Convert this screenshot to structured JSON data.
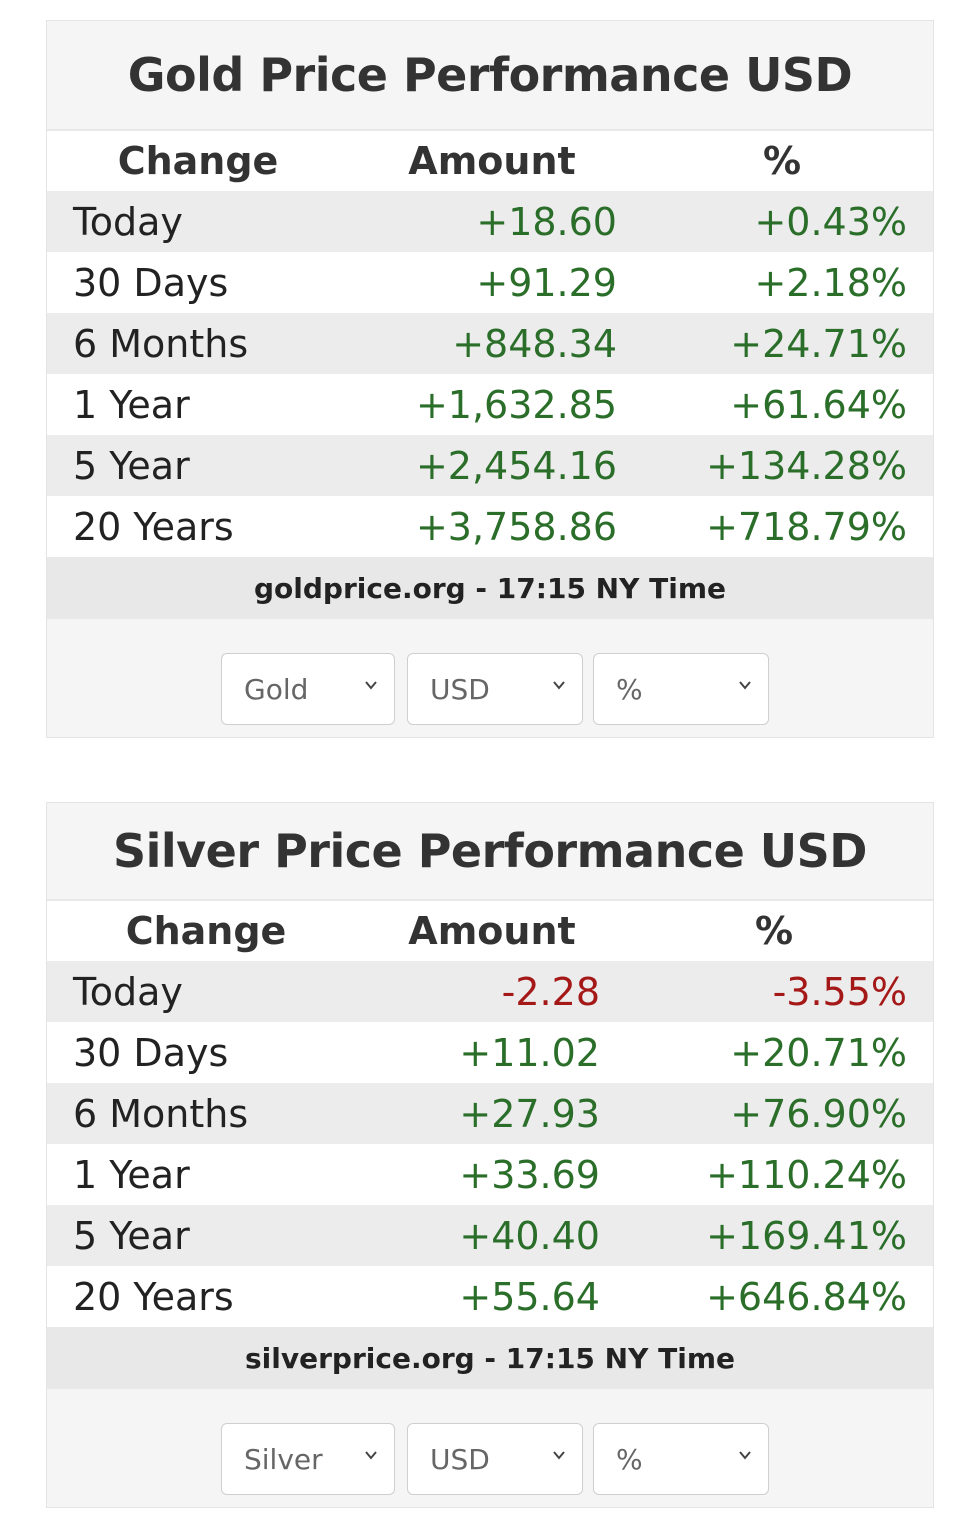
{
  "gold": {
    "title": "Gold Price Performance USD",
    "headers": {
      "change": "Change",
      "amount": "Amount",
      "pct": "%"
    },
    "rows": [
      {
        "label": "Today",
        "amount": "+18.60",
        "pct": "+0.43%",
        "trend": "pos"
      },
      {
        "label": "30 Days",
        "amount": "+91.29",
        "pct": "+2.18%",
        "trend": "pos"
      },
      {
        "label": "6 Months",
        "amount": "+848.34",
        "pct": "+24.71%",
        "trend": "pos"
      },
      {
        "label": "1 Year",
        "amount": "+1,632.85",
        "pct": "+61.64%",
        "trend": "pos"
      },
      {
        "label": "5 Year",
        "amount": "+2,454.16",
        "pct": "+134.28%",
        "trend": "pos"
      },
      {
        "label": "20 Years",
        "amount": "+3,758.86",
        "pct": "+718.79%",
        "trend": "pos"
      }
    ],
    "source": "goldprice.org - 17:15 NY Time",
    "selects": {
      "metal": "Gold",
      "currency": "USD",
      "unit": "%"
    }
  },
  "silver": {
    "title": "Silver Price Performance USD",
    "headers": {
      "change": "Change",
      "amount": "Amount",
      "pct": "%"
    },
    "rows": [
      {
        "label": "Today",
        "amount": "-2.28",
        "pct": "-3.55%",
        "trend": "neg"
      },
      {
        "label": "30 Days",
        "amount": "+11.02",
        "pct": "+20.71%",
        "trend": "pos"
      },
      {
        "label": "6 Months",
        "amount": "+27.93",
        "pct": "+76.90%",
        "trend": "pos"
      },
      {
        "label": "1 Year",
        "amount": "+33.69",
        "pct": "+110.24%",
        "trend": "pos"
      },
      {
        "label": "5 Year",
        "amount": "+40.40",
        "pct": "+169.41%",
        "trend": "pos"
      },
      {
        "label": "20 Years",
        "amount": "+55.64",
        "pct": "+646.84%",
        "trend": "pos"
      }
    ],
    "source": "silverprice.org - 17:15 NY Time",
    "selects": {
      "metal": "Silver",
      "currency": "USD",
      "unit": "%"
    }
  },
  "colors": {
    "positive": "#2a6e2a",
    "negative": "#a51818"
  },
  "icons": {
    "select_arrow": "chevron-down-icon"
  }
}
